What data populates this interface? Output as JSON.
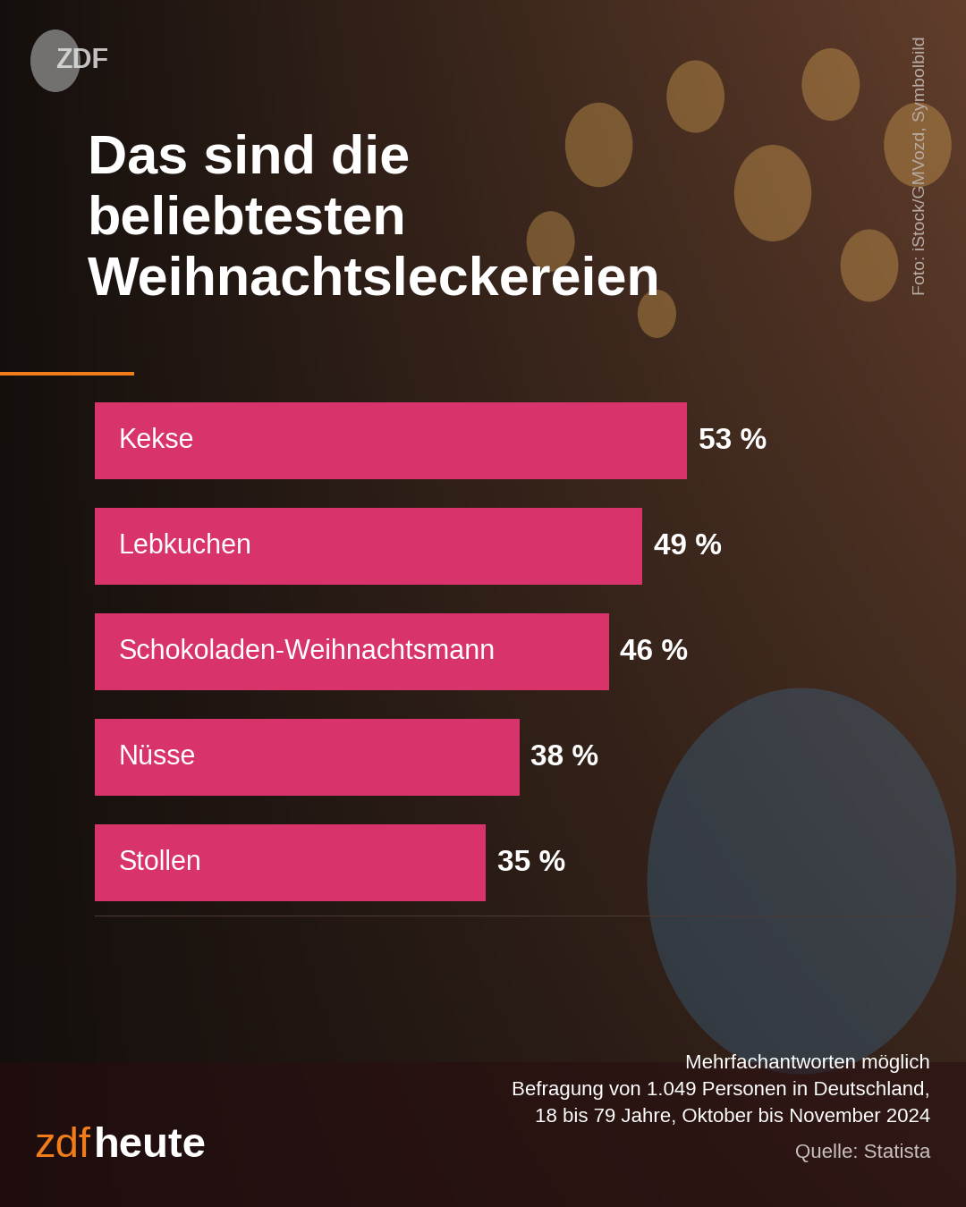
{
  "chart_data": {
    "type": "bar",
    "orientation": "horizontal",
    "title": "Das sind die beliebtesten Weihnachtsleckereien",
    "categories": [
      "Kekse",
      "Lebkuchen",
      "Schokoladen-Weihnachtsmann",
      "Nüsse",
      "Stollen"
    ],
    "values": [
      53,
      49,
      46,
      38,
      35
    ],
    "value_labels": [
      "53 %",
      "49 %",
      "46 %",
      "38 %",
      "35 %"
    ],
    "color": "#d9336b",
    "xlim": [
      0,
      75
    ],
    "xticks": [],
    "data_labels": true,
    "tick_labels": false,
    "grid": false,
    "annotations": [
      "Mehrfachantworten möglich",
      "Befragung von 1.049 Personen in Deutschland,",
      "18 bis 79 Jahre, Oktober bis November 2024"
    ],
    "source": "Quelle: Statista",
    "credit": "Foto: iStock/GMVozd, Symbolbild",
    "logo": "ZDF",
    "brand": [
      "zdf",
      "heute"
    ]
  }
}
